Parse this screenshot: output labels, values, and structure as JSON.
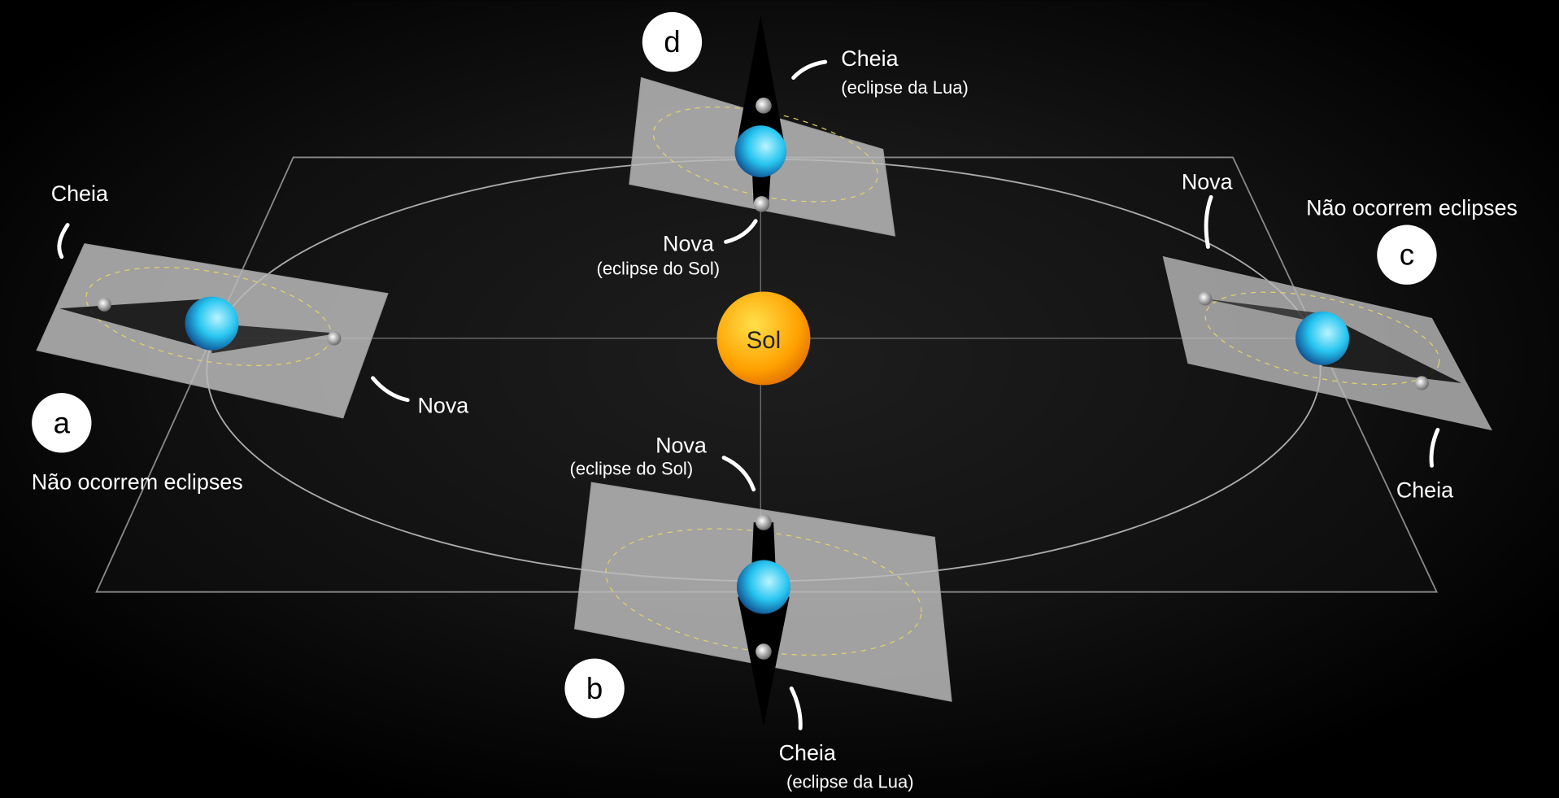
{
  "sun": {
    "label": "Sol"
  },
  "positions": [
    {
      "letter": "a",
      "note": "Não ocorrem eclipses",
      "full": "Cheia",
      "new": "Nova"
    },
    {
      "letter": "b",
      "new": "Nova",
      "new_note": "(eclipse do Sol)",
      "full": "Cheia",
      "full_note": "(eclipse da Lua)"
    },
    {
      "letter": "c",
      "note": "Não ocorrem eclipses",
      "new": "Nova",
      "full": "Cheia"
    },
    {
      "letter": "d",
      "full": "Cheia",
      "full_note": "(eclipse da Lua)",
      "new": "Nova",
      "new_note": "(eclipse do Sol)"
    }
  ]
}
